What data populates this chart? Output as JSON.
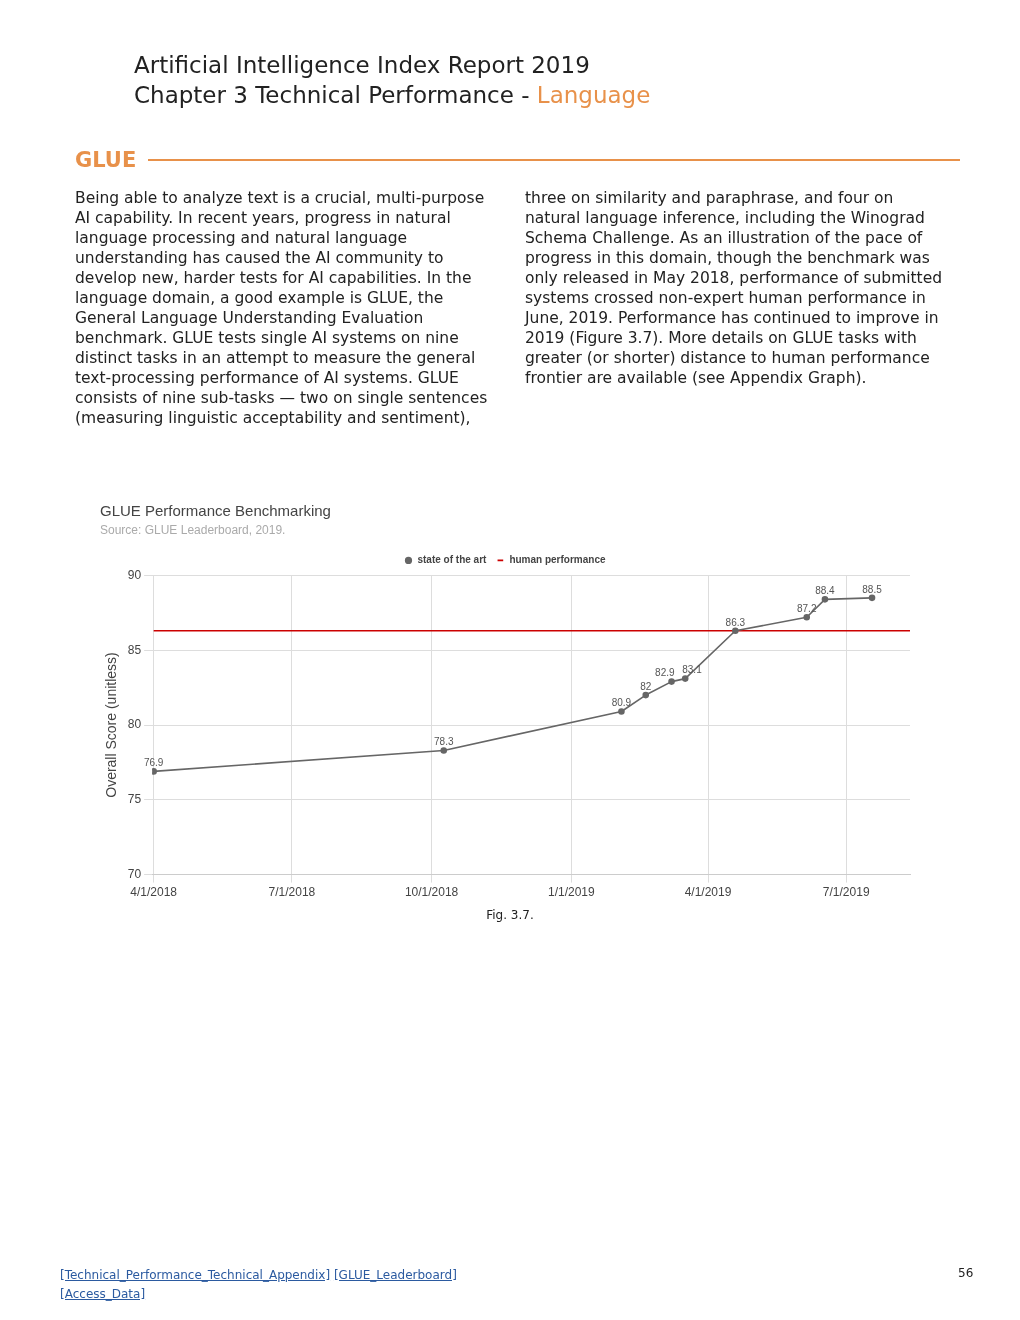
{
  "chart_data": {
    "type": "line",
    "title": "GLUE Performance Benchmarking",
    "subtitle": "Source: GLUE Leaderboard, 2019.",
    "ylabel": "Overall Score (unitless)",
    "annotations": [
      "Artificial Intelligence Index Report 2019",
      "Chapter 3 Technical Performance -",
      "Language",
      "GLUE",
      "Being able to analyze text is a crucial, multi-purpose AI capability. In recent years, progress in natural language processing and natural language understanding has caused the AI community to develop new, harder tests for AI capabilities. In the language domain, a good example is GLUE, the General Language Understanding Evaluation benchmark. GLUE tests single AI systems on nine distinct tasks in an attempt to measure the general text-processing performance of AI systems. GLUE consists of nine sub-tasks — two on single sentences (measuring linguistic acceptability and sentiment),",
      "three on similarity and paraphrase, and four on natural language inference, including the Winograd Schema Challenge. As an illustration of the pace of progress in this domain, though the benchmark was only released in May 2018, performance of submitted systems crossed non-expert human performance in June, 2019. Performance has continued to improve in 2019 (Figure 3.7). More details on GLUE tasks with greater (or shorter) distance to human performance frontier are available (see Appendix Graph).",
      "Fig. 3.7.",
      "[Technical_Performance_Technical_Appendix]",
      "[GLUE_Leaderboard]",
      "[Access_Data]",
      "56"
    ],
    "series": [
      {
        "name": "state of the art",
        "color": "#666666",
        "value_labels": [
          "76.9",
          "78.3",
          "80.9",
          "82",
          "82.9",
          "83.1",
          "86.3",
          "87.2",
          "88.4",
          "88.5"
        ],
        "x": [
          "2018-04-01",
          "2018-10-09",
          "2019-02-03",
          "2019-02-19",
          "2019-03-08",
          "2019-03-17",
          "2019-04-19",
          "2019-06-05",
          "2019-06-17",
          "2019-07-18"
        ],
        "values": [
          76.9,
          78.3,
          80.9,
          82,
          82.9,
          83.1,
          86.3,
          87.2,
          88.4,
          88.5
        ]
      },
      {
        "name": "human performance",
        "color": "#cc0000",
        "marker": "none",
        "x": [
          "2018-04-01",
          "2019-08-12"
        ],
        "values": [
          86.3,
          86.3
        ]
      }
    ],
    "xlim": [
      "2018-03-31",
      "2019-08-12"
    ],
    "xticks": [
      {
        "value": "2018-04-01",
        "label": "4/1/2018"
      },
      {
        "value": "2018-07-01",
        "label": "7/1/2018"
      },
      {
        "value": "2018-10-01",
        "label": "10/1/2018"
      },
      {
        "value": "2019-01-01",
        "label": "1/1/2019"
      },
      {
        "value": "2019-04-01",
        "label": "4/1/2019"
      },
      {
        "value": "2019-07-01",
        "label": "7/1/2019"
      }
    ],
    "ylim": [
      70,
      90
    ],
    "yticks": [
      70,
      75,
      80,
      85,
      90
    ],
    "grid": true,
    "legend": "top",
    "marker": "circle",
    "line_style": "solid"
  }
}
